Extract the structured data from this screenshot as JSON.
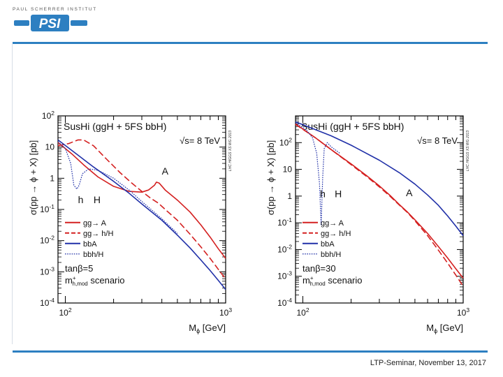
{
  "header": {
    "institute_caption": "PAUL SCHERRER INSTITUT",
    "logo_text": "PSI",
    "brand_color": "#2d7fc1"
  },
  "footer": {
    "text": "LTP-Seminar, November 13, 2017"
  },
  "chart_data": [
    {
      "type": "line",
      "title": "SusHi (ggH + 5FS bbH)",
      "energy_label": "√s= 8 TeV",
      "side_label": "LHC HIGGS XS WG 2013",
      "xlabel": "M",
      "xlabel_sub": "ϕ",
      "xlabel_unit": "[GeV]",
      "ylabel": "σ(pp → ϕ + X) [pb]",
      "xscale": "log",
      "yscale": "log",
      "xlim": [
        90,
        1000
      ],
      "ylim_exp": [
        -4,
        2
      ],
      "xticks": [
        {
          "label": "10",
          "exp": "2",
          "value": 100
        },
        {
          "label": "10",
          "exp": "3",
          "value": 1000
        }
      ],
      "yticks": [
        {
          "label": "10",
          "exp": "2",
          "value": 100
        },
        {
          "label": "10",
          "exp": "",
          "value": 10
        },
        {
          "label": "1",
          "exp": "",
          "value": 1
        },
        {
          "label": "10",
          "exp": "-1",
          "value": 0.1
        },
        {
          "label": "10",
          "exp": "-2",
          "value": 0.01
        },
        {
          "label": "10",
          "exp": "-3",
          "value": 0.001
        },
        {
          "label": "10",
          "exp": "-4",
          "value": 0.0001
        }
      ],
      "annotations": [
        {
          "text": "A",
          "x": 400,
          "y": 1.3
        },
        {
          "text": "h",
          "x": 120,
          "y": 0.16
        },
        {
          "text": "H",
          "x": 150,
          "y": 0.16
        }
      ],
      "legend": [
        {
          "label": "gg→ A",
          "color": "#d42020",
          "style": "solid"
        },
        {
          "label": "gg→ h/H",
          "color": "#d42020",
          "style": "dashed"
        },
        {
          "label": "bbA",
          "color": "#2030a8",
          "style": "solid"
        },
        {
          "label": "bbh/H",
          "color": "#2030a8",
          "style": "dotted"
        }
      ],
      "scenario": {
        "tanb": "tanβ=5",
        "mh": "m",
        "mh_sup": "+",
        "mh_sub": "h,mod",
        "word": "scenario"
      },
      "series": [
        {
          "name": "gg→ A",
          "color": "#d42020",
          "style": "solid",
          "points": [
            [
              90,
              14
            ],
            [
              110,
              6
            ],
            [
              130,
              2.7
            ],
            [
              160,
              1.1
            ],
            [
              200,
              0.55
            ],
            [
              250,
              0.38
            ],
            [
              300,
              0.36
            ],
            [
              330,
              0.42
            ],
            [
              360,
              0.6
            ],
            [
              370,
              0.75
            ],
            [
              385,
              0.7
            ],
            [
              420,
              0.42
            ],
            [
              500,
              0.2
            ],
            [
              600,
              0.082
            ],
            [
              700,
              0.032
            ],
            [
              800,
              0.013
            ],
            [
              900,
              0.0055
            ],
            [
              1000,
              0.0027
            ]
          ]
        },
        {
          "name": "gg→ h/H",
          "color": "#d42020",
          "style": "dashed",
          "points": [
            [
              90,
              11
            ],
            [
              105,
              13
            ],
            [
              120,
              17
            ],
            [
              130,
              17
            ],
            [
              150,
              11
            ],
            [
              180,
              4.2
            ],
            [
              220,
              1.5
            ],
            [
              260,
              0.7
            ],
            [
              300,
              0.38
            ],
            [
              340,
              0.23
            ],
            [
              380,
              0.16
            ],
            [
              420,
              0.1
            ],
            [
              500,
              0.045
            ],
            [
              600,
              0.016
            ],
            [
              700,
              0.0063
            ],
            [
              800,
              0.0027
            ],
            [
              900,
              0.0012
            ],
            [
              1000,
              0.00058
            ]
          ]
        },
        {
          "name": "bbA",
          "color": "#2030a8",
          "style": "solid",
          "points": [
            [
              90,
              17
            ],
            [
              120,
              5.5
            ],
            [
              150,
              2.3
            ],
            [
              200,
              0.8
            ],
            [
              250,
              0.33
            ],
            [
              300,
              0.15
            ],
            [
              400,
              0.045
            ],
            [
              500,
              0.015
            ],
            [
              600,
              0.0058
            ],
            [
              700,
              0.0024
            ],
            [
              800,
              0.0011
            ],
            [
              900,
              0.00053
            ],
            [
              1000,
              0.00027
            ]
          ]
        },
        {
          "name": "bbh/H",
          "color": "#2030a8",
          "style": "dotted",
          "points": [
            [
              90,
              15
            ],
            [
              100,
              9
            ],
            [
              108,
              3
            ],
            [
              113,
              0.6
            ],
            [
              118,
              0.45
            ],
            [
              122,
              0.6
            ],
            [
              128,
              1.4
            ],
            [
              140,
              2.0
            ],
            [
              160,
              1.8
            ],
            [
              200,
              1.0
            ],
            [
              250,
              0.42
            ],
            [
              300,
              0.18
            ],
            [
              400,
              0.05
            ],
            [
              500,
              0.017
            ]
          ]
        }
      ]
    },
    {
      "type": "line",
      "title": "SusHi (ggH + 5FS bbH)",
      "energy_label": "√s= 8 TeV",
      "side_label": "LHC HIGGS XS WG 2013",
      "xlabel": "M",
      "xlabel_sub": "ϕ",
      "xlabel_unit": "[GeV]",
      "ylabel": "σ(pp → ϕ + X) [pb]",
      "xscale": "log",
      "yscale": "log",
      "xlim": [
        90,
        1000
      ],
      "ylim_exp": [
        -4,
        3
      ],
      "xticks": [
        {
          "label": "10",
          "exp": "2",
          "value": 100
        },
        {
          "label": "10",
          "exp": "3",
          "value": 1000
        }
      ],
      "yticks": [
        {
          "label": "10",
          "exp": "2",
          "value": 100
        },
        {
          "label": "10",
          "exp": "",
          "value": 10
        },
        {
          "label": "1",
          "exp": "",
          "value": 1
        },
        {
          "label": "10",
          "exp": "-1",
          "value": 0.1
        },
        {
          "label": "10",
          "exp": "-2",
          "value": 0.01
        },
        {
          "label": "10",
          "exp": "-3",
          "value": 0.001
        },
        {
          "label": "10",
          "exp": "-4",
          "value": 0.0001
        }
      ],
      "annotations": [
        {
          "text": "A",
          "x": 440,
          "y": 1.0
        },
        {
          "text": "h",
          "x": 128,
          "y": 0.9
        },
        {
          "text": "H",
          "x": 158,
          "y": 0.9
        }
      ],
      "legend": [
        {
          "label": "gg→ A",
          "color": "#d42020",
          "style": "solid"
        },
        {
          "label": "gg→ h/H",
          "color": "#d42020",
          "style": "dashed"
        },
        {
          "label": "bbA",
          "color": "#2030a8",
          "style": "solid"
        },
        {
          "label": "bbh/H",
          "color": "#2030a8",
          "style": "dotted"
        }
      ],
      "scenario": {
        "tanb": "tanβ=30",
        "mh": "m",
        "mh_sup": "+",
        "mh_sub": "h,mod",
        "word": "scenario"
      },
      "series": [
        {
          "name": "gg→ A",
          "color": "#d42020",
          "style": "solid",
          "points": [
            [
              90,
              500
            ],
            [
              120,
              150
            ],
            [
              150,
              55
            ],
            [
              200,
              16
            ],
            [
              250,
              5.8
            ],
            [
              300,
              2.4
            ],
            [
              350,
              1.05
            ],
            [
              400,
              0.48
            ],
            [
              450,
              0.25
            ],
            [
              500,
              0.13
            ],
            [
              600,
              0.04
            ],
            [
              700,
              0.013
            ],
            [
              800,
              0.0048
            ],
            [
              900,
              0.0019
            ],
            [
              1000,
              0.00085
            ]
          ]
        },
        {
          "name": "gg→ h/H",
          "color": "#d42020",
          "style": "dashed",
          "points": [
            [
              90,
              480
            ],
            [
              120,
              150
            ],
            [
              150,
              55
            ],
            [
              200,
              15
            ],
            [
              250,
              5.4
            ],
            [
              300,
              2.2
            ],
            [
              350,
              0.98
            ],
            [
              400,
              0.46
            ],
            [
              450,
              0.24
            ],
            [
              500,
              0.12
            ],
            [
              600,
              0.033
            ],
            [
              700,
              0.0095
            ],
            [
              800,
              0.0031
            ],
            [
              900,
              0.0011
            ],
            [
              1000,
              0.00042
            ]
          ]
        },
        {
          "name": "bbA",
          "color": "#2030a8",
          "style": "solid",
          "points": [
            [
              90,
              600
            ],
            [
              150,
              180
            ],
            [
              200,
              80
            ],
            [
              300,
              22
            ],
            [
              400,
              7.5
            ],
            [
              500,
              2.8
            ],
            [
              600,
              1.1
            ],
            [
              700,
              0.45
            ],
            [
              800,
              0.18
            ],
            [
              900,
              0.075
            ],
            [
              1000,
              0.033
            ]
          ]
        },
        {
          "name": "bbh/H",
          "color": "#2030a8",
          "style": "dotted",
          "points": [
            [
              90,
              550
            ],
            [
              105,
              300
            ],
            [
              115,
              150
            ],
            [
              122,
              40
            ],
            [
              127,
              3
            ],
            [
              130,
              0.08
            ],
            [
              133,
              5
            ],
            [
              136,
              60
            ],
            [
              142,
              100
            ],
            [
              150,
              70
            ],
            [
              170,
              40
            ]
          ]
        }
      ]
    }
  ]
}
